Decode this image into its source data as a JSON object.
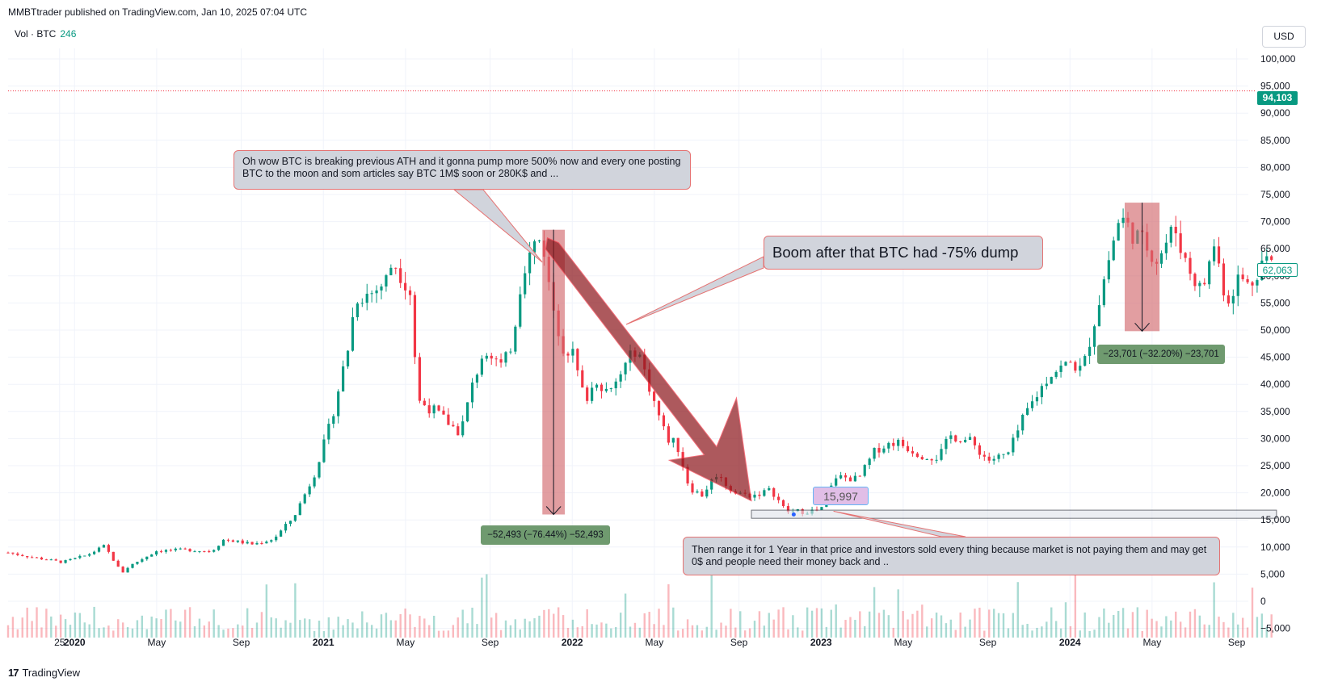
{
  "publisher": "MMBTtrader published on TradingView.com, Jan 10, 2025 07:04 UTC",
  "legend": {
    "label": "Vol · BTC",
    "value": "246"
  },
  "currency": "USD",
  "footer": {
    "brand": "TradingView",
    "logo_text": "17"
  },
  "price_tags": {
    "high_line": "94,103",
    "last": "62,063"
  },
  "annotations": {
    "note1": "Oh wow BTC is breaking previous ATH and it gonna pump more 500% now and every one posting BTC to the moon and som articles say BTC 1M$ soon or 280K$ and ...",
    "note2": "Boom after that BTC had -75% dump",
    "note3": "Then range it for 1 Year in that price and investors sold every thing because market is not paying them and may get 0$ and people need their money back and ..",
    "measure1": "−52,493 (−76.44%) −52,493",
    "measure2": "−23,701 (−32.20%) −23,701",
    "low_label": "15,997"
  },
  "colors": {
    "up": "#089981",
    "down": "#f23645",
    "measure_box": "#d36a6f",
    "big_arrow": "#8e1a1f",
    "grid": "#f0f3fa",
    "high_line": "#f23645"
  },
  "chart_data": {
    "type": "candlestick",
    "symbol": "BTC",
    "currency": "USD",
    "y_ticks": [
      100000,
      95000,
      90000,
      85000,
      80000,
      75000,
      70000,
      65000,
      60000,
      55000,
      50000,
      45000,
      40000,
      35000,
      30000,
      25000,
      20000,
      15000,
      10000,
      5000,
      0,
      -5000
    ],
    "y_tick_labels": [
      "100,000",
      "95,000",
      "90,000",
      "85,000",
      "80,000",
      "75,000",
      "70,000",
      "65,000",
      "60,000",
      "55,000",
      "50,000",
      "45,000",
      "40,000",
      "35,000",
      "30,000",
      "25,000",
      "20,000",
      "15,000",
      "10,000",
      "5,000",
      "0",
      "−5,000"
    ],
    "ylim": [
      -6000,
      102000
    ],
    "x_ticks": [
      {
        "t": 2019.94,
        "label": "25"
      },
      {
        "t": 2020.0,
        "label": "2020"
      },
      {
        "t": 2020.33,
        "label": "May"
      },
      {
        "t": 2020.67,
        "label": "Sep"
      },
      {
        "t": 2021.0,
        "label": "2021"
      },
      {
        "t": 2021.33,
        "label": "May"
      },
      {
        "t": 2021.67,
        "label": "Sep"
      },
      {
        "t": 2022.0,
        "label": "2022"
      },
      {
        "t": 2022.33,
        "label": "May"
      },
      {
        "t": 2022.67,
        "label": "Sep"
      },
      {
        "t": 2023.0,
        "label": "2023"
      },
      {
        "t": 2023.33,
        "label": "May"
      },
      {
        "t": 2023.67,
        "label": "Sep"
      },
      {
        "t": 2024.0,
        "label": "2024"
      },
      {
        "t": 2024.33,
        "label": "May"
      },
      {
        "t": 2024.67,
        "label": "Sep"
      }
    ],
    "high_line_price": 94103,
    "last_price": 62063,
    "price_path": [
      [
        2019.73,
        9000
      ],
      [
        2019.82,
        8200
      ],
      [
        2019.95,
        7200
      ],
      [
        2020.05,
        8500
      ],
      [
        2020.12,
        10200
      ],
      [
        2020.19,
        5200
      ],
      [
        2020.22,
        6500
      ],
      [
        2020.33,
        9300
      ],
      [
        2020.45,
        9500
      ],
      [
        2020.55,
        9200
      ],
      [
        2020.6,
        11400
      ],
      [
        2020.72,
        10500
      ],
      [
        2020.8,
        11500
      ],
      [
        2020.88,
        15500
      ],
      [
        2020.96,
        23000
      ],
      [
        2021.03,
        33000
      ],
      [
        2021.1,
        47000
      ],
      [
        2021.13,
        56000
      ],
      [
        2021.2,
        57000
      ],
      [
        2021.25,
        59000
      ],
      [
        2021.28,
        63000
      ],
      [
        2021.35,
        57000
      ],
      [
        2021.38,
        37000
      ],
      [
        2021.45,
        35000
      ],
      [
        2021.55,
        31000
      ],
      [
        2021.6,
        40000
      ],
      [
        2021.65,
        47000
      ],
      [
        2021.72,
        43000
      ],
      [
        2021.76,
        48000
      ],
      [
        2021.8,
        61000
      ],
      [
        2021.85,
        66000
      ],
      [
        2021.88,
        67000
      ],
      [
        2021.91,
        57000
      ],
      [
        2021.96,
        47000
      ],
      [
        2022.0,
        46000
      ],
      [
        2022.05,
        37000
      ],
      [
        2022.1,
        41000
      ],
      [
        2022.15,
        38000
      ],
      [
        2022.22,
        44000
      ],
      [
        2022.26,
        47000
      ],
      [
        2022.32,
        38000
      ],
      [
        2022.38,
        30000
      ],
      [
        2022.42,
        29000
      ],
      [
        2022.47,
        21000
      ],
      [
        2022.52,
        19500
      ],
      [
        2022.58,
        23500
      ],
      [
        2022.65,
        20000
      ],
      [
        2022.72,
        19500
      ],
      [
        2022.8,
        20500
      ],
      [
        2022.86,
        16500
      ],
      [
        2022.95,
        16600
      ],
      [
        2023.0,
        16800
      ],
      [
        2023.06,
        23000
      ],
      [
        2023.15,
        22500
      ],
      [
        2023.22,
        28000
      ],
      [
        2023.3,
        29500
      ],
      [
        2023.4,
        27000
      ],
      [
        2023.47,
        26500
      ],
      [
        2023.52,
        30500
      ],
      [
        2023.6,
        29500
      ],
      [
        2023.67,
        26000
      ],
      [
        2023.75,
        27000
      ],
      [
        2023.82,
        34500
      ],
      [
        2023.92,
        42000
      ],
      [
        2024.0,
        44000
      ],
      [
        2024.05,
        42500
      ],
      [
        2024.1,
        52000
      ],
      [
        2024.15,
        62000
      ],
      [
        2024.2,
        71000
      ],
      [
        2024.25,
        68000
      ],
      [
        2024.3,
        66000
      ],
      [
        2024.35,
        63000
      ],
      [
        2024.42,
        69000
      ],
      [
        2024.47,
        62000
      ],
      [
        2024.53,
        57000
      ],
      [
        2024.58,
        66000
      ],
      [
        2024.63,
        55000
      ],
      [
        2024.68,
        60000
      ],
      [
        2024.72,
        58000
      ],
      [
        2024.78,
        63500
      ],
      [
        2024.82,
        62063
      ]
    ],
    "measure1": {
      "t": [
        2021.88,
        2021.97
      ],
      "from": 68500,
      "to": 16000,
      "change": -52493,
      "pct": -76.44
    },
    "measure2": {
      "t": [
        2024.22,
        2024.36
      ],
      "from": 73500,
      "to": 49800,
      "change": -23701,
      "pct": -32.2
    },
    "range_box": {
      "t": [
        2022.72,
        2024.83
      ],
      "from": 16800,
      "to": 15300
    },
    "low_price": 15997
  }
}
